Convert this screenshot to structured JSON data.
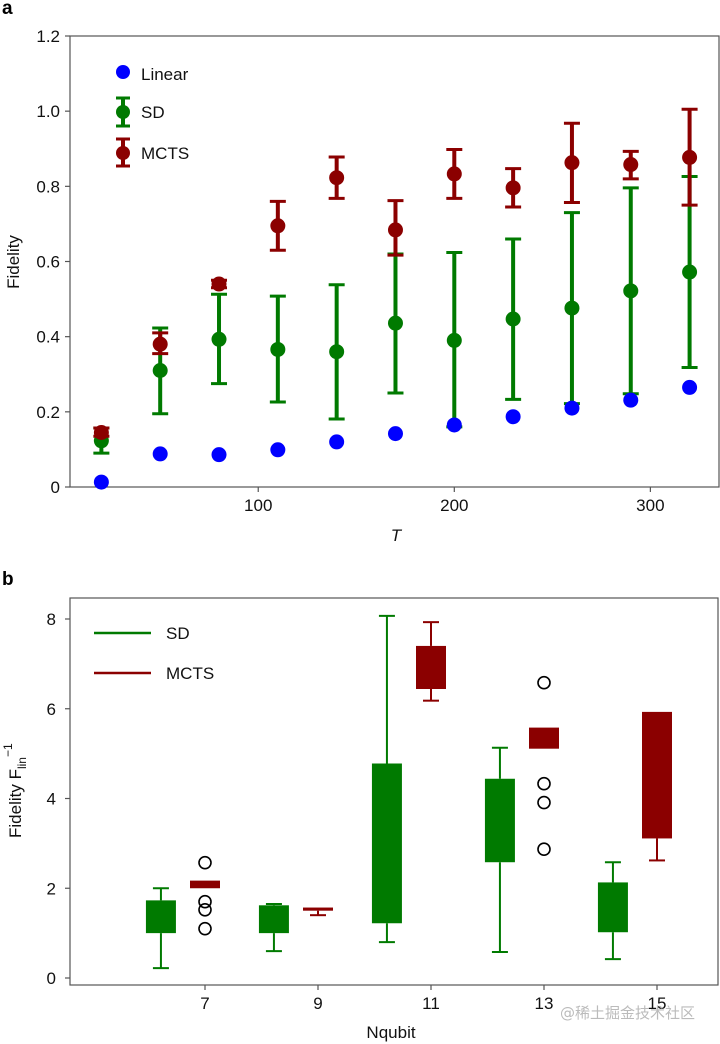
{
  "chart_data": [
    {
      "panel": "a",
      "type": "scatter",
      "title": "",
      "xlabel": "T",
      "ylabel": "Fidelity",
      "xlim": [
        4,
        335
      ],
      "ylim": [
        0,
        1.2
      ],
      "xticks": [
        100,
        200,
        300
      ],
      "xtick_labels": [
        "100",
        "200",
        "300"
      ],
      "yticks": [
        0,
        0.2,
        0.4,
        0.6,
        0.8,
        1.0,
        1.2
      ],
      "ytick_labels": [
        "0",
        "0.2",
        "0.4",
        "0.6",
        "0.8",
        "1.0",
        "1.2"
      ],
      "grid": false,
      "legend_position": "top-left",
      "x": [
        20,
        50,
        80,
        110,
        140,
        170,
        200,
        230,
        260,
        290,
        320
      ],
      "series": [
        {
          "name": "Linear",
          "color": "#0000ff",
          "values": [
            0.013,
            0.088,
            0.086,
            0.099,
            0.12,
            0.142,
            0.165,
            0.187,
            0.21,
            0.231,
            0.265
          ]
        },
        {
          "name": "SD",
          "color": "#007a00",
          "values": [
            0.123,
            0.31,
            0.393,
            0.366,
            0.36,
            0.436,
            0.39,
            0.447,
            0.476,
            0.522,
            0.572
          ],
          "err_low": [
            0.09,
            0.195,
            0.275,
            0.226,
            0.181,
            0.25,
            0.16,
            0.233,
            0.222,
            0.248,
            0.318
          ],
          "err_high": [
            0.157,
            0.423,
            0.513,
            0.508,
            0.538,
            0.62,
            0.624,
            0.66,
            0.73,
            0.796,
            0.826
          ]
        },
        {
          "name": "MCTS",
          "color": "#8b0000",
          "values": [
            0.145,
            0.38,
            0.54,
            0.695,
            0.823,
            0.684,
            0.833,
            0.796,
            0.863,
            0.858,
            0.877
          ],
          "err_low": [
            0.135,
            0.355,
            0.53,
            0.63,
            0.768,
            0.617,
            0.768,
            0.745,
            0.757,
            0.82,
            0.75
          ],
          "err_high": [
            0.157,
            0.41,
            0.55,
            0.76,
            0.878,
            0.762,
            0.898,
            0.847,
            0.968,
            0.893,
            1.005
          ]
        }
      ]
    },
    {
      "panel": "b",
      "type": "box",
      "title": "",
      "xlabel": "Nqubit",
      "ylabel_main": "Fidelity F",
      "ylabel_sub": "lin",
      "ylabel_sup": "−1",
      "ylim": [
        -0.15,
        8.45
      ],
      "xlim": [
        5.3,
        16.3
      ],
      "xticks": [
        7,
        9,
        11,
        13,
        15
      ],
      "xtick_labels": [
        "7",
        "9",
        "11",
        "13",
        "15"
      ],
      "yticks": [
        0,
        2,
        4,
        6,
        8
      ],
      "ytick_labels": [
        "0",
        "2",
        "4",
        "6",
        "8"
      ],
      "grid": false,
      "legend_position": "top-left",
      "series": [
        {
          "name": "SD",
          "color": "#007a00",
          "boxes": [
            {
              "nqubit": 7,
              "whisker_low": 0.22,
              "q1": 1.0,
              "q3": 1.73,
              "whisker_high": 2.0,
              "outliers": []
            },
            {
              "nqubit": 9,
              "whisker_low": 0.6,
              "q1": 1.0,
              "q3": 1.62,
              "whisker_high": 1.65,
              "outliers": []
            },
            {
              "nqubit": 11,
              "whisker_low": 0.8,
              "q1": 1.22,
              "q3": 4.78,
              "whisker_high": 8.07,
              "outliers": []
            },
            {
              "nqubit": 13,
              "whisker_low": 0.58,
              "q1": 2.58,
              "q3": 4.44,
              "whisker_high": 5.13,
              "outliers": []
            },
            {
              "nqubit": 15,
              "whisker_low": 0.42,
              "q1": 1.02,
              "q3": 2.13,
              "whisker_high": 2.58,
              "outliers": []
            }
          ]
        },
        {
          "name": "MCTS",
          "color": "#8b0000",
          "boxes": [
            {
              "nqubit": 7,
              "whisker_low": 2.0,
              "q1": 2.0,
              "q3": 2.17,
              "whisker_high": 2.17,
              "outliers": [
                2.57,
                1.7,
                1.52,
                1.1
              ]
            },
            {
              "nqubit": 9,
              "whisker_low": 1.4,
              "q1": 1.5,
              "q3": 1.57,
              "whisker_high": 1.57,
              "outliers": []
            },
            {
              "nqubit": 11,
              "whisker_low": 6.18,
              "q1": 6.44,
              "q3": 7.4,
              "whisker_high": 7.93,
              "outliers": []
            },
            {
              "nqubit": 13,
              "whisker_low": 5.11,
              "q1": 5.11,
              "q3": 5.58,
              "whisker_high": 5.58,
              "outliers": [
                6.58,
                4.33,
                3.91,
                2.87
              ]
            },
            {
              "nqubit": 15,
              "whisker_low": 2.62,
              "q1": 3.11,
              "q3": 5.93,
              "whisker_high": 5.93,
              "outliers": []
            }
          ]
        }
      ]
    }
  ],
  "watermark": "@稀土掘金技术社区"
}
